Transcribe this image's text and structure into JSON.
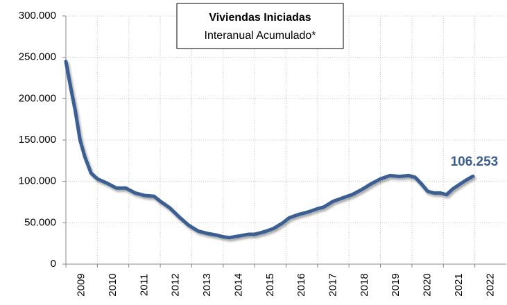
{
  "chart_data": {
    "type": "line",
    "title": "Viviendas Iniciadas",
    "subtitle": "Interanual Acumulado*",
    "x": [
      2009.0,
      2009.15,
      2009.3,
      2009.45,
      2009.6,
      2009.8,
      2010.0,
      2010.3,
      2010.6,
      2010.9,
      2011.2,
      2011.5,
      2011.8,
      2012.0,
      2012.3,
      2012.6,
      2012.9,
      2013.2,
      2013.5,
      2013.8,
      2014.0,
      2014.2,
      2014.5,
      2014.8,
      2015.0,
      2015.3,
      2015.6,
      2015.9,
      2016.1,
      2016.4,
      2016.7,
      2017.0,
      2017.2,
      2017.5,
      2017.8,
      2018.1,
      2018.4,
      2018.7,
      2019.0,
      2019.3,
      2019.6,
      2019.9,
      2020.1,
      2020.3,
      2020.5,
      2020.7,
      2020.9,
      2021.1,
      2021.3,
      2021.5,
      2021.7,
      2021.94
    ],
    "series": [
      {
        "name": "Viviendas Iniciadas",
        "color": "#3a5e92",
        "values": [
          245000,
          214000,
          185000,
          150000,
          130000,
          110000,
          103000,
          98000,
          92000,
          92000,
          86000,
          83000,
          82000,
          76000,
          68000,
          57000,
          47000,
          40000,
          37000,
          35000,
          33000,
          32000,
          34000,
          36000,
          36000,
          39000,
          43000,
          50000,
          56000,
          60000,
          63000,
          67000,
          69000,
          76000,
          80000,
          84000,
          90000,
          97000,
          103000,
          107000,
          106000,
          107000,
          105000,
          97000,
          88000,
          86000,
          86000,
          84000,
          91000,
          96000,
          101000,
          106253
        ],
        "value_labels": [
          null,
          null,
          null,
          null,
          null,
          null,
          null,
          null,
          null,
          null,
          null,
          null,
          null,
          null,
          null,
          null,
          null,
          null,
          null,
          null,
          null,
          null,
          null,
          null,
          null,
          null,
          null,
          null,
          null,
          null,
          null,
          null,
          null,
          null,
          null,
          null,
          null,
          null,
          null,
          null,
          null,
          null,
          null,
          null,
          null,
          null,
          null,
          null,
          null,
          null,
          null,
          "106.253"
        ]
      }
    ],
    "xlim": [
      2009,
      2023
    ],
    "xticks": [
      2009,
      2010,
      2011,
      2012,
      2013,
      2014,
      2015,
      2016,
      2017,
      2018,
      2019,
      2020,
      2021,
      2022
    ],
    "ylim": [
      0,
      300000
    ],
    "yticks": [
      0,
      {
        "value": 50000,
        "label": "50.000"
      },
      {
        "value": 100000,
        "label": "100.000"
      },
      {
        "value": 150000,
        "label": "150.000"
      },
      {
        "value": 200000,
        "label": "200.000"
      },
      {
        "value": 250000,
        "label": "250.000"
      },
      {
        "value": 300000,
        "label": "300.000"
      }
    ],
    "grid": true
  }
}
